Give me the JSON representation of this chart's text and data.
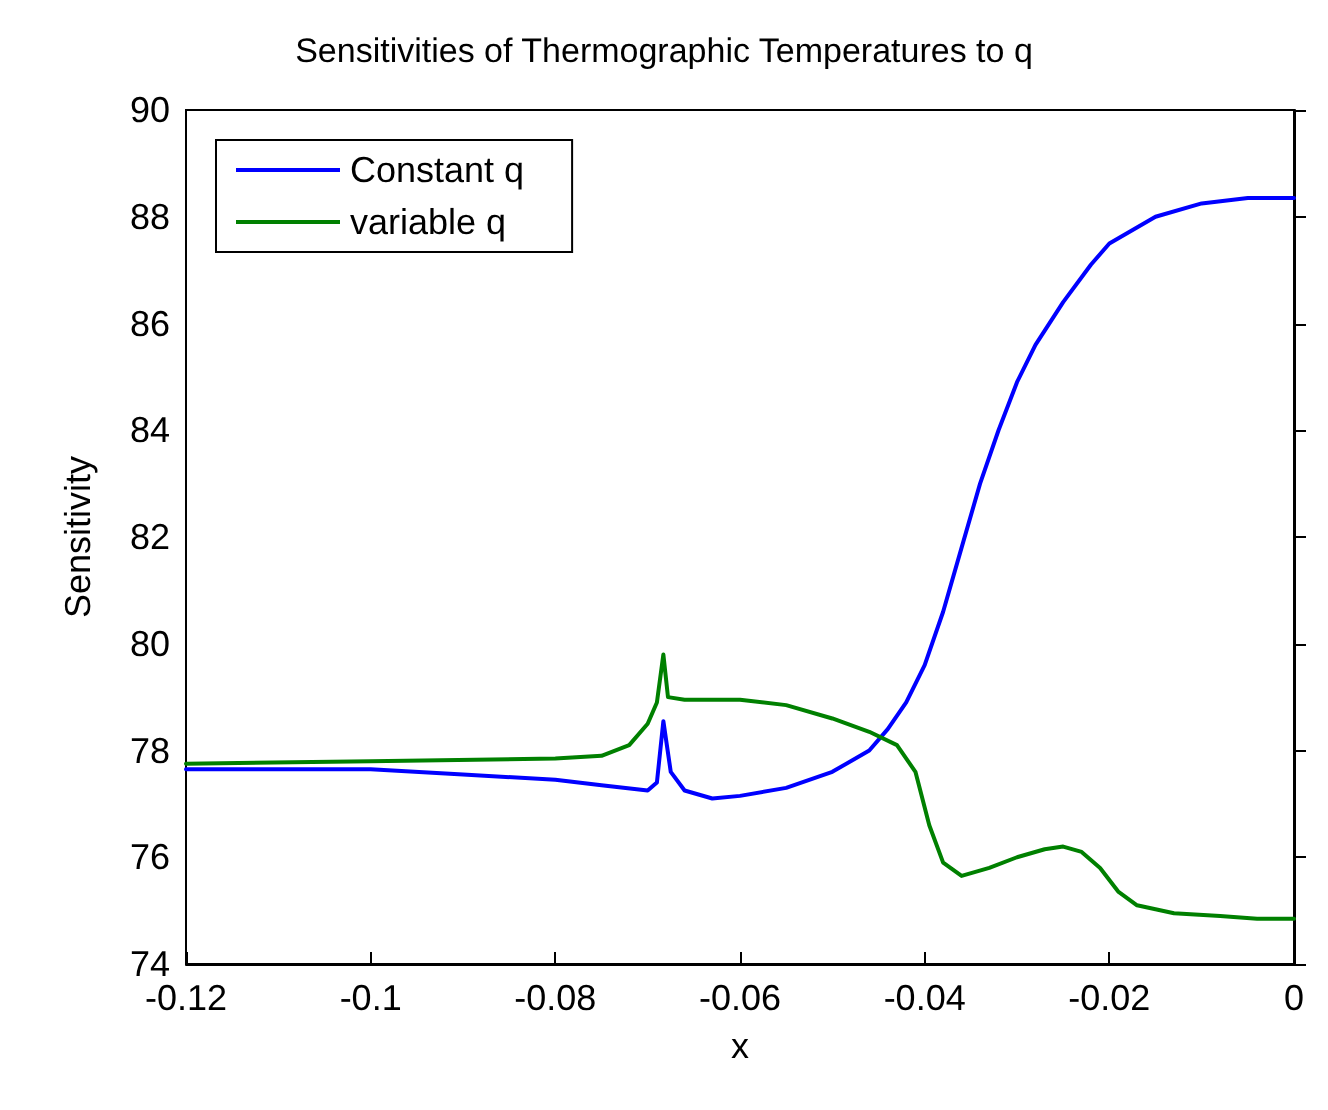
{
  "chart_data": {
    "type": "line",
    "title": "Sensitivities of Thermographic Temperatures to q",
    "xlabel": "x",
    "ylabel": "Sensitivity",
    "xlim": [
      -0.12,
      0
    ],
    "xticks": [
      -0.12,
      -0.1,
      -0.08,
      -0.06,
      -0.04,
      -0.02,
      0
    ],
    "ylim": [
      74,
      90
    ],
    "yticks": [
      74,
      76,
      78,
      80,
      82,
      84,
      86,
      88,
      90
    ],
    "grid": false,
    "legend": "top left",
    "marker": "none",
    "line_style": "solid",
    "series": [
      {
        "name": "Constant q",
        "color": "#0000ff",
        "x": [
          -0.12,
          -0.1,
          -0.09,
          -0.08,
          -0.075,
          -0.07,
          -0.069,
          -0.0683,
          -0.0675,
          -0.066,
          -0.063,
          -0.06,
          -0.055,
          -0.05,
          -0.046,
          -0.044,
          -0.042,
          -0.04,
          -0.038,
          -0.036,
          -0.034,
          -0.032,
          -0.03,
          -0.028,
          -0.025,
          -0.022,
          -0.02,
          -0.015,
          -0.01,
          -0.005,
          0
        ],
        "values": [
          77.65,
          77.65,
          77.55,
          77.45,
          77.35,
          77.25,
          77.4,
          78.55,
          77.6,
          77.25,
          77.1,
          77.15,
          77.3,
          77.6,
          78.0,
          78.4,
          78.9,
          79.6,
          80.6,
          81.8,
          83.0,
          84.0,
          84.9,
          85.6,
          86.4,
          87.1,
          87.5,
          88.0,
          88.25,
          88.35,
          88.35
        ]
      },
      {
        "name": "variable q",
        "color": "#008000",
        "x": [
          -0.12,
          -0.1,
          -0.08,
          -0.075,
          -0.072,
          -0.07,
          -0.069,
          -0.0683,
          -0.0678,
          -0.066,
          -0.06,
          -0.055,
          -0.05,
          -0.046,
          -0.043,
          -0.041,
          -0.0395,
          -0.038,
          -0.036,
          -0.033,
          -0.03,
          -0.027,
          -0.025,
          -0.023,
          -0.021,
          -0.019,
          -0.017,
          -0.013,
          -0.008,
          -0.004,
          0
        ],
        "values": [
          77.75,
          77.8,
          77.85,
          77.9,
          78.1,
          78.5,
          78.9,
          79.8,
          79.0,
          78.95,
          78.95,
          78.85,
          78.6,
          78.35,
          78.1,
          77.6,
          76.6,
          75.9,
          75.65,
          75.8,
          76.0,
          76.15,
          76.2,
          76.1,
          75.8,
          75.35,
          75.1,
          74.95,
          74.9,
          74.85,
          74.85
        ]
      }
    ]
  }
}
